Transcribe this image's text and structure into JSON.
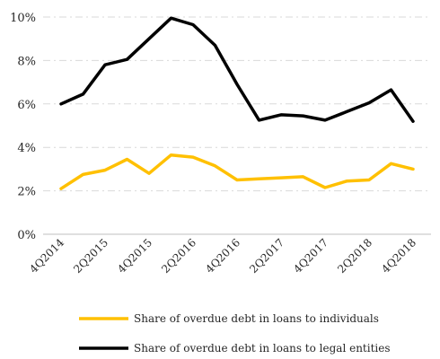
{
  "chart_data": {
    "type": "line",
    "title": "",
    "xlabel": "",
    "ylabel": "",
    "x": [
      "4Q2014",
      "1Q2015",
      "2Q2015",
      "3Q2015",
      "4Q2015",
      "1Q2016",
      "2Q2016",
      "3Q2016",
      "4Q2016",
      "1Q2017",
      "2Q2017",
      "3Q2017",
      "4Q2017",
      "1Q2018",
      "2Q2018",
      "3Q2018",
      "4Q2018"
    ],
    "x_tick_labels": [
      "4Q2014",
      "2Q2015",
      "4Q2015",
      "2Q2016",
      "4Q2016",
      "2Q2017",
      "4Q2017",
      "2Q2018",
      "4Q2018"
    ],
    "y_tick_labels": [
      "0%",
      "2%",
      "4%",
      "6%",
      "8%",
      "10%"
    ],
    "ylim": [
      0,
      10
    ],
    "y_unit": "%",
    "grid": "horizontal dashed",
    "legend_position": "bottom",
    "series": [
      {
        "name": "Share of overdue debt in loans to individuals",
        "color": "#FFC000",
        "values": [
          2.1,
          2.75,
          2.95,
          3.45,
          2.8,
          3.65,
          3.55,
          3.15,
          2.5,
          2.55,
          2.6,
          2.65,
          2.15,
          2.45,
          2.5,
          3.25,
          3.0
        ]
      },
      {
        "name": "Share of overdue debt in loans to legal entities",
        "color": "#000000",
        "values": [
          6.0,
          6.45,
          7.8,
          8.05,
          9.0,
          9.95,
          9.65,
          8.7,
          6.9,
          5.25,
          5.5,
          5.45,
          5.25,
          5.65,
          6.05,
          6.65,
          5.2
        ]
      }
    ]
  }
}
